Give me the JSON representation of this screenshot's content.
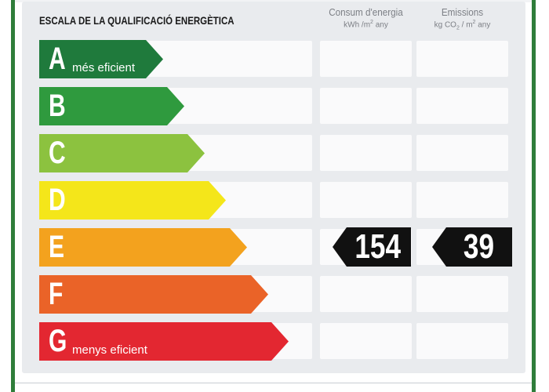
{
  "title": "ESCALA DE LA QUALIFICACIÓ ENERGÈTICA",
  "columns": {
    "energy": {
      "label": "Consum d'energia",
      "unit_a": "kWh /m",
      "unit_sup": "2",
      "unit_b": " any"
    },
    "emissions": {
      "label": "Emissions",
      "unit_a": "kg CO",
      "unit_sub": "2",
      "unit_b": " / m",
      "unit_sup": "2",
      "unit_c": " any"
    }
  },
  "ratings": [
    {
      "letter": "A",
      "caption": "més eficient",
      "color": "#1f7a3c"
    },
    {
      "letter": "B",
      "caption": "",
      "color": "#2f9a3e"
    },
    {
      "letter": "C",
      "caption": "",
      "color": "#8cc23f"
    },
    {
      "letter": "D",
      "caption": "",
      "color": "#f4e61a"
    },
    {
      "letter": "E",
      "caption": "",
      "color": "#f3a21e"
    },
    {
      "letter": "F",
      "caption": "",
      "color": "#ea6328"
    },
    {
      "letter": "G",
      "caption": "menys eficient",
      "color": "#e32731"
    }
  ],
  "current": {
    "rating": "E",
    "energy_value": "154",
    "emissions_value": "39"
  }
}
